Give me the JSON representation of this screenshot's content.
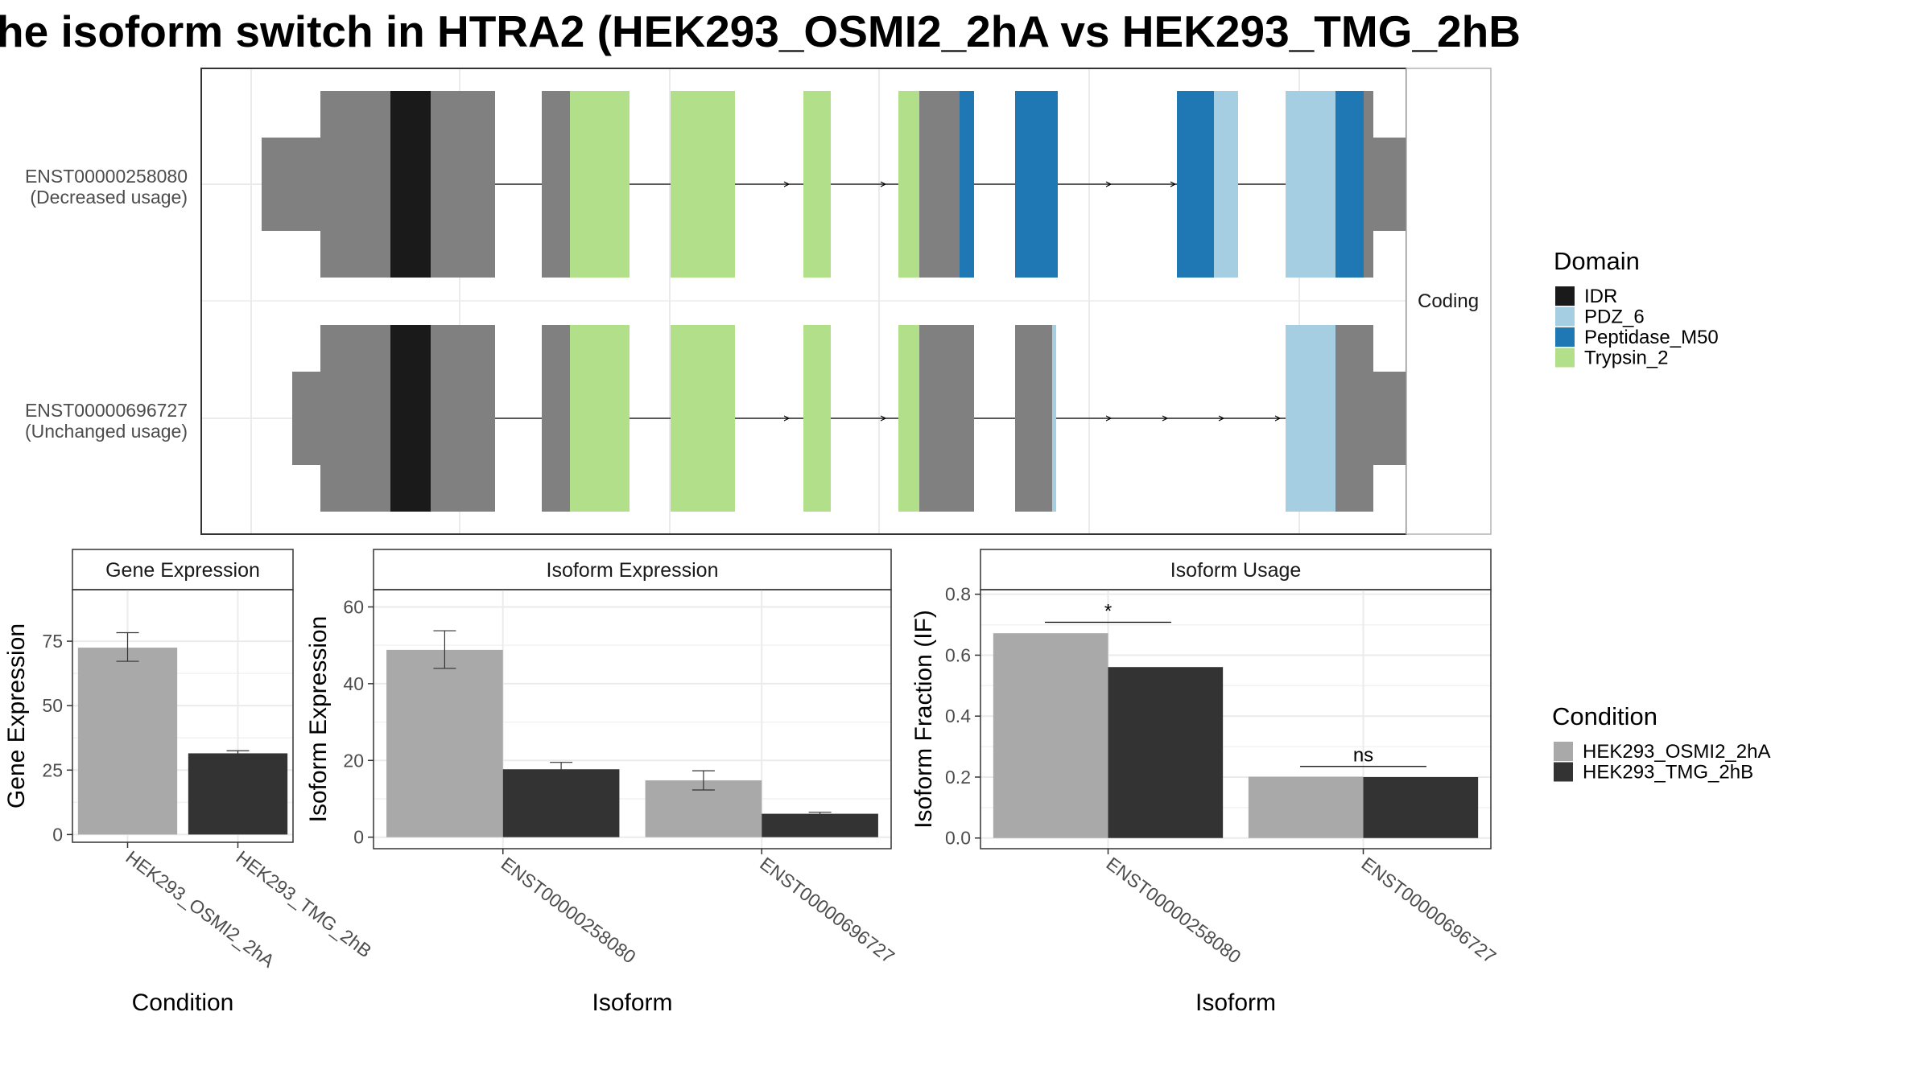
{
  "title": "he isoform switch in HTRA2 (HEK293_OSMI2_2hA vs HEK293_TMG_2hB",
  "colors": {
    "IDR": "#1a1a1a",
    "PDZ_6": "#a6cee3",
    "Peptidase_M50": "#1f78b4",
    "Trypsin_2": "#b2df8a",
    "exon": "#808080",
    "cond_A": "#a9a9a9",
    "cond_B": "#333333",
    "strip_bg": "#ffffff",
    "grid": "#ebebeb"
  },
  "gene_structure": {
    "facet_label": "Coding",
    "transcripts": [
      {
        "id": "ENST00000258080",
        "usage": "(Decreased usage)",
        "segments": [
          {
            "s": 7.5,
            "e": 14.8,
            "type": "utr"
          },
          {
            "s": 14.8,
            "e": 23.5,
            "type": "exon"
          },
          {
            "s": 23.5,
            "e": 28.5,
            "type": "IDR"
          },
          {
            "s": 28.5,
            "e": 36.5,
            "type": "exon"
          },
          {
            "s": 42.3,
            "e": 45.8,
            "type": "exon"
          },
          {
            "s": 45.8,
            "e": 53.2,
            "type": "Trypsin_2"
          },
          {
            "s": 58.3,
            "e": 66.3,
            "type": "Trypsin_2"
          },
          {
            "s": 74.8,
            "e": 78.2,
            "type": "Trypsin_2"
          },
          {
            "s": 86.6,
            "e": 89.2,
            "type": "Trypsin_2"
          },
          {
            "s": 89.2,
            "e": 94.2,
            "type": "exon"
          },
          {
            "s": 94.2,
            "e": 96.0,
            "type": "Peptidase_M50"
          },
          {
            "s": 101.1,
            "e": 106.4,
            "type": "Peptidase_M50"
          },
          {
            "s": 121.2,
            "e": 125.8,
            "type": "Peptidase_M50"
          },
          {
            "s": 125.8,
            "e": 128.8,
            "type": "PDZ_6"
          },
          {
            "s": 134.7,
            "e": 140.9,
            "type": "PDZ_6"
          },
          {
            "s": 140.9,
            "e": 144.4,
            "type": "Peptidase_M50"
          },
          {
            "s": 144.4,
            "e": 145.6,
            "type": "exon"
          },
          {
            "s": 145.6,
            "e": 157.2,
            "type": "utr"
          }
        ],
        "arrows": [
          73.0,
          77.0,
          85.0,
          89.0,
          113.0,
          121.0
        ]
      },
      {
        "id": "ENST00000696727",
        "usage": "(Unchanged usage)",
        "segments": [
          {
            "s": 11.3,
            "e": 14.8,
            "type": "utr"
          },
          {
            "s": 14.8,
            "e": 23.5,
            "type": "exon"
          },
          {
            "s": 23.5,
            "e": 28.5,
            "type": "IDR"
          },
          {
            "s": 28.5,
            "e": 36.5,
            "type": "exon"
          },
          {
            "s": 42.3,
            "e": 45.8,
            "type": "exon"
          },
          {
            "s": 45.8,
            "e": 53.2,
            "type": "Trypsin_2"
          },
          {
            "s": 58.3,
            "e": 66.3,
            "type": "Trypsin_2"
          },
          {
            "s": 74.8,
            "e": 78.2,
            "type": "Trypsin_2"
          },
          {
            "s": 86.6,
            "e": 89.2,
            "type": "Trypsin_2"
          },
          {
            "s": 89.2,
            "e": 96.0,
            "type": "exon"
          },
          {
            "s": 101.1,
            "e": 105.7,
            "type": "exon"
          },
          {
            "s": 105.7,
            "e": 106.2,
            "type": "PDZ_6"
          },
          {
            "s": 134.7,
            "e": 140.9,
            "type": "PDZ_6"
          },
          {
            "s": 140.9,
            "e": 145.6,
            "type": "exon"
          },
          {
            "s": 145.6,
            "e": 157.2,
            "type": "utr"
          }
        ],
        "arrows": [
          73.0,
          77.0,
          85.0,
          89.0,
          113.0,
          120.0,
          127.0,
          134.0
        ]
      }
    ]
  },
  "legend_domain": {
    "title": "Domain",
    "items": [
      {
        "label": "IDR",
        "key": "IDR"
      },
      {
        "label": "PDZ_6",
        "key": "PDZ_6"
      },
      {
        "label": "Peptidase_M50",
        "key": "Peptidase_M50"
      },
      {
        "label": "Trypsin_2",
        "key": "Trypsin_2"
      }
    ]
  },
  "legend_condition": {
    "title": "Condition",
    "items": [
      {
        "label": "HEK293_OSMI2_2hA",
        "key": "cond_A"
      },
      {
        "label": "HEK293_TMG_2hB",
        "key": "cond_B"
      }
    ]
  },
  "chart_data": [
    {
      "type": "bar",
      "title": "Gene Expression",
      "xlabel": "Condition",
      "ylabel": "Gene Expression",
      "ylim": [
        -3,
        95
      ],
      "yticks": [
        0,
        25,
        50,
        75
      ],
      "categories": [
        "HEK293_OSMI2_2hA",
        "HEK293_TMG_2hB"
      ],
      "values": [
        72.5,
        31.5
      ],
      "errors": [
        [
          67.2,
          78.3
        ],
        [
          30.6,
          32.5
        ]
      ]
    },
    {
      "type": "bar",
      "title": "Isoform Expression",
      "xlabel": "Isoform",
      "ylabel": "Isoform Expression",
      "ylim": [
        -3,
        64.5
      ],
      "yticks": [
        0,
        20,
        40,
        60
      ],
      "categories": [
        "ENST00000258080",
        "ENST00000696727"
      ],
      "series": [
        {
          "name": "HEK293_OSMI2_2hA",
          "values": [
            48.8,
            14.8
          ],
          "errors": [
            [
              44.0,
              53.8
            ],
            [
              12.3,
              17.3
            ]
          ]
        },
        {
          "name": "HEK293_TMG_2hB",
          "values": [
            17.7,
            6.1
          ],
          "errors": [
            [
              16.2,
              19.5
            ],
            [
              5.7,
              6.5
            ]
          ]
        }
      ]
    },
    {
      "type": "bar",
      "title": "Isoform Usage",
      "xlabel": "Isoform",
      "ylabel": "Isoform Fraction (IF)",
      "ylim": [
        -0.035,
        0.815
      ],
      "yticks": [
        "0.0",
        "0.2",
        "0.4",
        "0.6",
        "0.8"
      ],
      "categories": [
        "ENST00000258080",
        "ENST00000696727"
      ],
      "series": [
        {
          "name": "HEK293_OSMI2_2hA",
          "values": [
            0.672,
            0.201
          ]
        },
        {
          "name": "HEK293_TMG_2hB",
          "values": [
            0.561,
            0.2
          ]
        }
      ],
      "annotations": [
        {
          "category": "ENST00000258080",
          "label": "*",
          "y": 0.708
        },
        {
          "category": "ENST00000696727",
          "label": "ns",
          "y": 0.235
        }
      ]
    }
  ]
}
